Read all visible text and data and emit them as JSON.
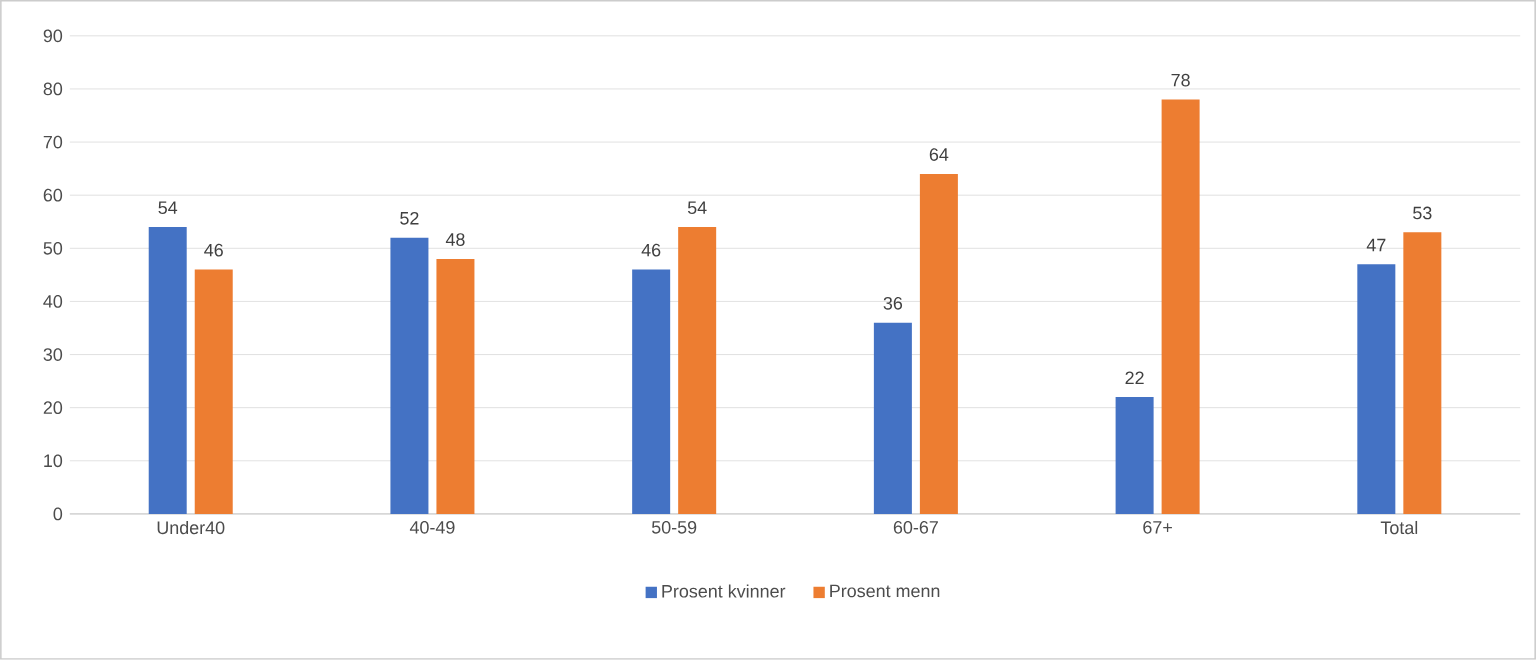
{
  "chart_data": {
    "type": "bar",
    "categories": [
      "Under40",
      "40-49",
      "50-59",
      "60-67",
      "67+",
      "Total"
    ],
    "series": [
      {
        "name": "Prosent kvinner",
        "color": "#4472c4",
        "values": [
          54,
          52,
          46,
          36,
          22,
          47
        ]
      },
      {
        "name": "Prosent menn",
        "color": "#ed7d31",
        "values": [
          46,
          48,
          54,
          64,
          78,
          53
        ]
      }
    ],
    "ylim": [
      0,
      90
    ],
    "yticks": [
      0,
      10,
      20,
      30,
      40,
      50,
      60,
      70,
      80,
      90
    ],
    "grid": "y",
    "legend": "bottom",
    "data_labels": true
  }
}
